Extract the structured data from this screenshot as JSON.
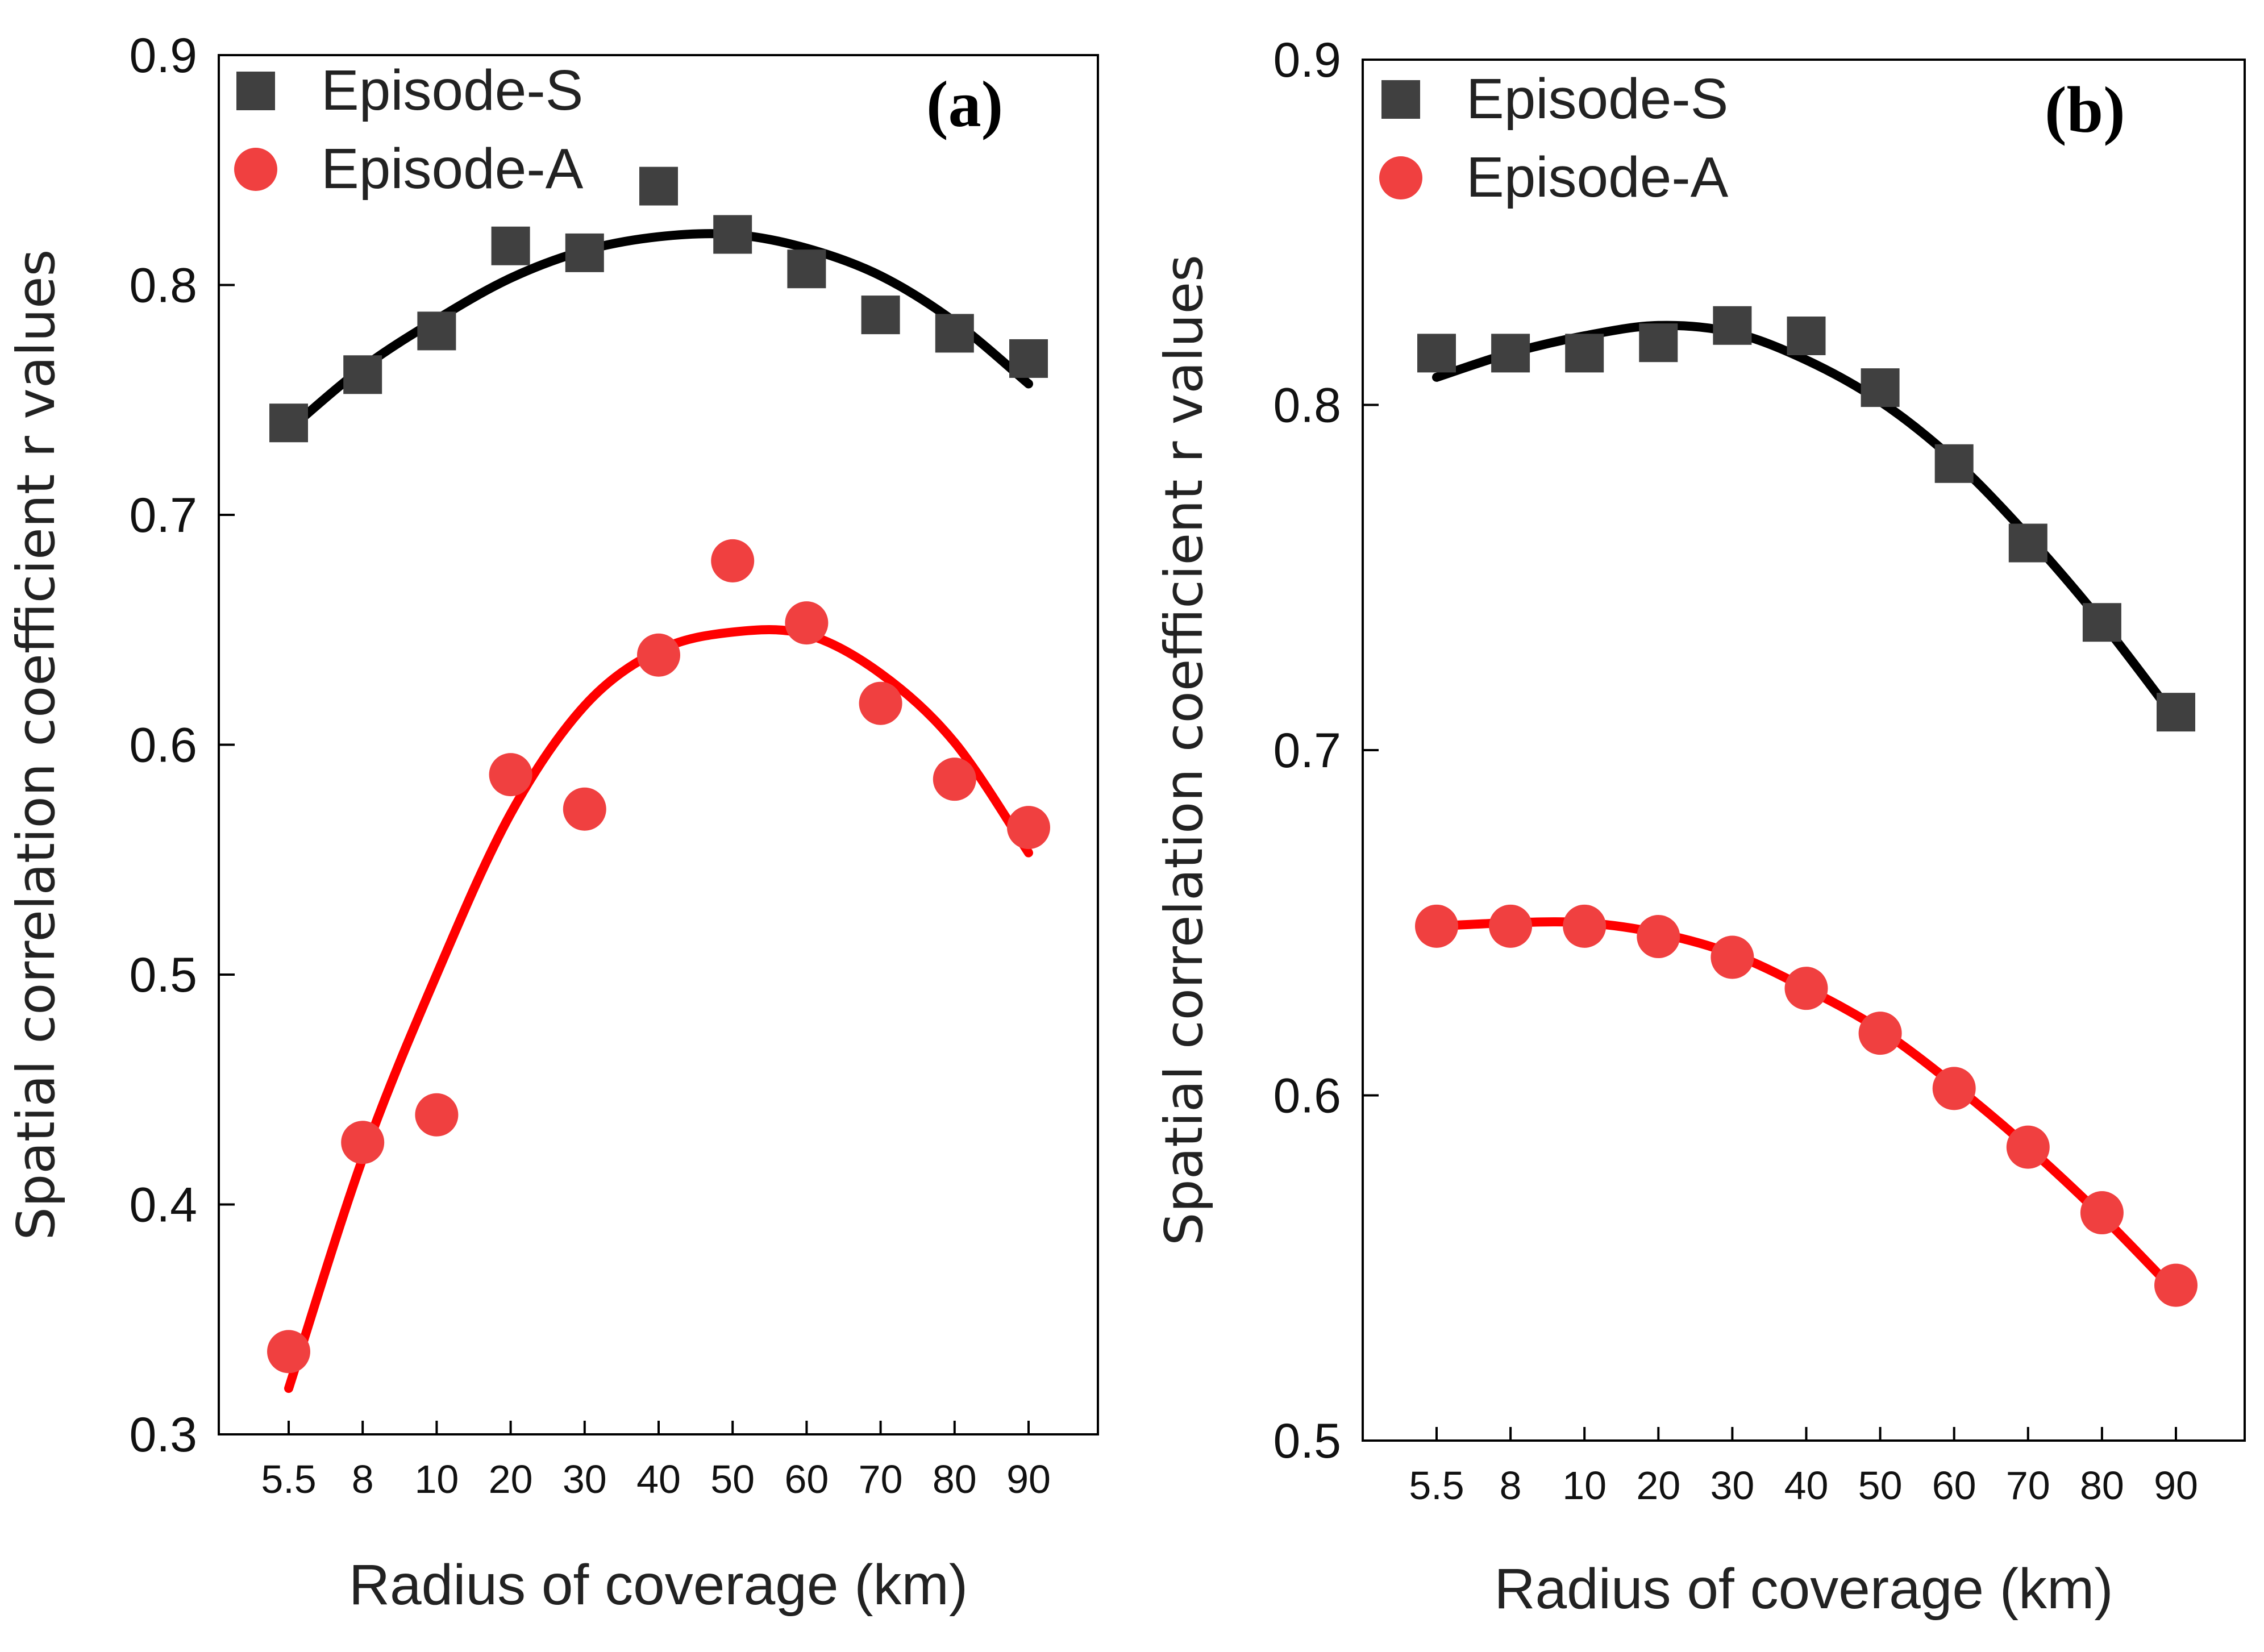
{
  "chart_data": [
    {
      "type": "scatter",
      "panel_label": "(a)",
      "xlabel": "Radius of coverage (km)",
      "ylabel": "Spatial correlation coefficient r values",
      "categories": [
        "5.5",
        "8",
        "10",
        "20",
        "30",
        "40",
        "50",
        "60",
        "70",
        "80",
        "90"
      ],
      "yticks": [
        "0.3",
        "0.4",
        "0.5",
        "0.6",
        "0.7",
        "0.8",
        "0.9"
      ],
      "ylim": [
        0.3,
        0.9
      ],
      "legend_position": "top-left",
      "series": [
        {
          "name": "Episode-S",
          "marker": "square",
          "color": "#404040",
          "fit_color": "#000000",
          "values": [
            0.74,
            0.761,
            0.78,
            0.817,
            0.814,
            0.843,
            0.822,
            0.807,
            0.787,
            0.779,
            0.768
          ],
          "fit": [
            0.737,
            0.764,
            0.785,
            0.803,
            0.815,
            0.821,
            0.822,
            0.816,
            0.804,
            0.784,
            0.757
          ]
        },
        {
          "name": "Episode-A",
          "marker": "circle",
          "color": "#f04040",
          "fit_color": "#ff0000",
          "values": [
            0.336,
            0.427,
            0.439,
            0.587,
            0.572,
            0.639,
            0.68,
            0.653,
            0.618,
            0.585,
            0.564
          ],
          "fit": [
            0.32,
            0.42,
            0.5,
            0.57,
            0.617,
            0.641,
            0.649,
            0.648,
            0.631,
            0.601,
            0.553
          ]
        }
      ]
    },
    {
      "type": "scatter",
      "panel_label": "(b)",
      "xlabel": "Radius of coverage (km)",
      "ylabel": "Spatial correlation coefficient r values",
      "categories": [
        "5.5",
        "8",
        "10",
        "20",
        "30",
        "40",
        "50",
        "60",
        "70",
        "80",
        "90"
      ],
      "yticks": [
        "0.5",
        "0.6",
        "0.7",
        "0.8",
        "0.9"
      ],
      "ylim": [
        0.5,
        0.9
      ],
      "legend_position": "top-left",
      "series": [
        {
          "name": "Episode-S",
          "marker": "square",
          "color": "#404040",
          "fit_color": "#000000",
          "values": [
            0.815,
            0.815,
            0.815,
            0.818,
            0.823,
            0.82,
            0.805,
            0.783,
            0.76,
            0.737,
            0.711
          ],
          "fit": [
            0.808,
            0.815,
            0.82,
            0.823,
            0.821,
            0.813,
            0.801,
            0.784,
            0.762,
            0.737,
            0.709
          ]
        },
        {
          "name": "Episode-A",
          "marker": "circle",
          "color": "#f04040",
          "fit_color": "#ff0000",
          "values": [
            0.649,
            0.649,
            0.649,
            0.646,
            0.64,
            0.631,
            0.618,
            0.602,
            0.585,
            0.566,
            0.545
          ],
          "fit": [
            0.649,
            0.65,
            0.65,
            0.647,
            0.641,
            0.631,
            0.619,
            0.603,
            0.585,
            0.565,
            0.543
          ]
        }
      ]
    }
  ]
}
